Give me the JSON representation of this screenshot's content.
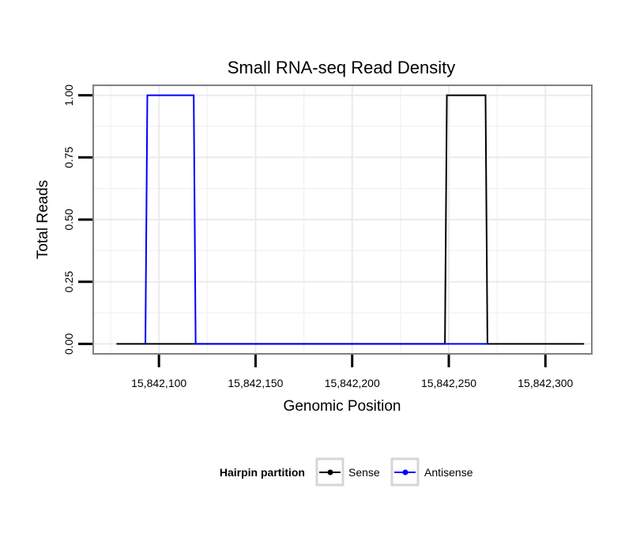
{
  "chart_data": {
    "type": "line",
    "title": "Small RNA-seq Read Density",
    "xlabel": "Genomic Position",
    "ylabel": "Total Reads",
    "xlim": [
      15842066,
      15842324
    ],
    "ylim": [
      -0.04,
      1.04
    ],
    "x_ticks": [
      {
        "value": 15842100,
        "label": "15,842,100"
      },
      {
        "value": 15842150,
        "label": "15,842,150"
      },
      {
        "value": 15842200,
        "label": "15,842,200"
      },
      {
        "value": 15842250,
        "label": "15,842,250"
      },
      {
        "value": 15842300,
        "label": "15,842,300"
      }
    ],
    "y_ticks": [
      {
        "value": 0,
        "label": "0.00"
      },
      {
        "value": 0.25,
        "label": "0.25"
      },
      {
        "value": 0.5,
        "label": "0.50"
      },
      {
        "value": 0.75,
        "label": "0.75"
      },
      {
        "value": 1,
        "label": "1.00"
      }
    ],
    "grid": true,
    "legend": {
      "title": "Hairpin partition",
      "position": "bottom"
    },
    "series": [
      {
        "name": "Sense",
        "color": "#000000",
        "points": [
          {
            "x": 15842078,
            "y": 0
          },
          {
            "x": 15842248,
            "y": 0
          },
          {
            "x": 15842249,
            "y": 1
          },
          {
            "x": 15842269,
            "y": 1
          },
          {
            "x": 15842270,
            "y": 0
          },
          {
            "x": 15842320,
            "y": 0
          }
        ]
      },
      {
        "name": "Antisense",
        "color": "#0000ff",
        "points": [
          {
            "x": 15842093,
            "y": 0
          },
          {
            "x": 15842094,
            "y": 1
          },
          {
            "x": 15842118,
            "y": 1
          },
          {
            "x": 15842119,
            "y": 0
          },
          {
            "x": 15842248,
            "y": 0
          },
          {
            "x": 15842270,
            "y": 0
          }
        ]
      }
    ]
  }
}
